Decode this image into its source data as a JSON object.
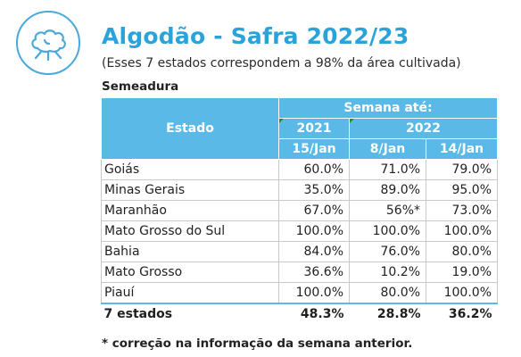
{
  "header": {
    "title": "Algodão - Safra 2022/23",
    "subtitle": "(Esses 7 estados correspondem a 98% da área cultivada)",
    "section": "Semeadura",
    "logo_icon": "cotton-boll-icon"
  },
  "table": {
    "col_estado": "Estado",
    "col_group": "Semana até:",
    "year_2021": "2021",
    "year_2022": "2022",
    "dates": [
      "15/Jan",
      "8/Jan",
      "14/Jan"
    ],
    "rows": [
      {
        "estado": "Goiás",
        "v2021": "60.0%",
        "v8jan": "71.0%",
        "v14jan": "79.0%"
      },
      {
        "estado": "Minas Gerais",
        "v2021": "35.0%",
        "v8jan": "89.0%",
        "v14jan": "95.0%"
      },
      {
        "estado": "Maranhão",
        "v2021": "67.0%",
        "v8jan": "56%*",
        "v14jan": "73.0%"
      },
      {
        "estado": "Mato Grosso do Sul",
        "v2021": "100.0%",
        "v8jan": "100.0%",
        "v14jan": "100.0%"
      },
      {
        "estado": "Bahia",
        "v2021": "84.0%",
        "v8jan": "76.0%",
        "v14jan": "80.0%"
      },
      {
        "estado": "Mato Grosso",
        "v2021": "36.6%",
        "v8jan": "10.2%",
        "v14jan": "19.0%"
      },
      {
        "estado": "Piauí",
        "v2021": "100.0%",
        "v8jan": "80.0%",
        "v14jan": "100.0%"
      }
    ],
    "total": {
      "estado": "7 estados",
      "v2021": "48.3%",
      "v8jan": "28.8%",
      "v14jan": "36.2%"
    }
  },
  "footnote": "* correção na informação da semana anterior.",
  "colors": {
    "accent": "#2aa3da",
    "header_bg": "#5bb9e8",
    "marker": "#2e8b3a"
  }
}
